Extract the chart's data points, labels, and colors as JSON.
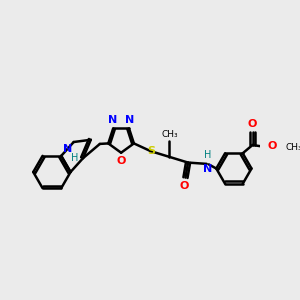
{
  "bg_color": "#ebebeb",
  "bond_color": "#000000",
  "n_color": "#0000ff",
  "o_color": "#ff0000",
  "s_color": "#cccc00",
  "h_color": "#008080",
  "line_width": 1.8,
  "figsize": [
    3.0,
    3.0
  ],
  "dpi": 100,
  "xlim": [
    0,
    10
  ],
  "ylim": [
    0,
    10
  ]
}
